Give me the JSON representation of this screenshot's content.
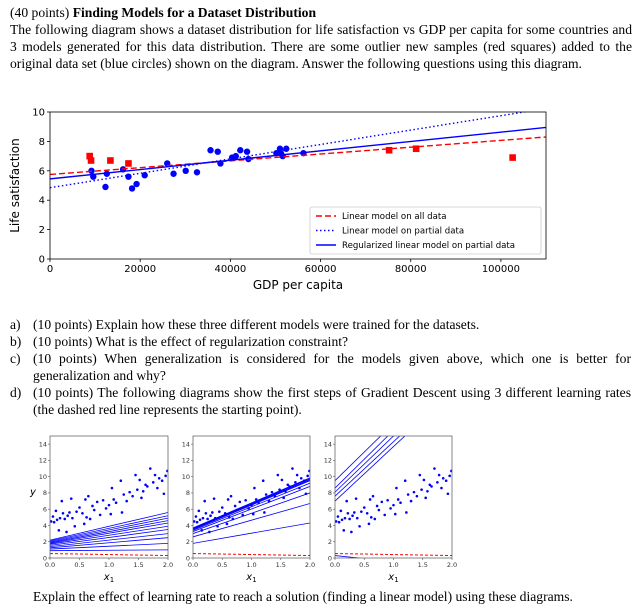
{
  "header": {
    "points": "(40 points)",
    "title": "Finding Models for a Dataset Distribution"
  },
  "intro": "The following diagram shows a dataset distribution for life satisfaction vs GDP per capita for some countries and 3 models generated for this data distribution. There are some outlier new samples (red squares) added to the original data set (blue circles) shown on the diagram. Answer the following questions using this diagram.",
  "questions": [
    {
      "letter": "a)",
      "text": "(10 points) Explain how these three different models were trained for the datasets."
    },
    {
      "letter": "b)",
      "text": "(10 points) What is the effect of regularization constraint?"
    },
    {
      "letter": "c)",
      "text": "(10 points) When generalization is considered for the models given above, which one is better for generalization and why?"
    },
    {
      "letter": "d)",
      "text": "(10 points) The following diagrams show the first steps of Gradient Descent using 3 different learning rates (the dashed red line represents the starting point)."
    }
  ],
  "closing": "Explain the effect of learning rate to reach a solution (finding a linear model) using these diagrams.",
  "chart_data": [
    {
      "type": "scatter",
      "xlabel": "GDP per capita",
      "ylabel": "Life satisfaction",
      "xlim": [
        0,
        110000
      ],
      "ylim": [
        0,
        10
      ],
      "xticks": [
        "0",
        "20000",
        "40000",
        "60000",
        "80000",
        "100000"
      ],
      "xtick_values": [
        0,
        20000,
        40000,
        60000,
        80000,
        100000
      ],
      "yticks": [
        "0",
        "2",
        "4",
        "6",
        "8",
        "10"
      ],
      "ytick_values": [
        0,
        2,
        4,
        6,
        8,
        10
      ],
      "legend_position": "bottom-right",
      "grid": false,
      "points": {
        "blue_circles": [
          [
            9200,
            6.0
          ],
          [
            9600,
            5.6
          ],
          [
            12600,
            5.8
          ],
          [
            12300,
            4.9
          ],
          [
            16200,
            6.1
          ],
          [
            17400,
            5.6
          ],
          [
            18200,
            4.8
          ],
          [
            19200,
            5.1
          ],
          [
            21000,
            5.7
          ],
          [
            26000,
            6.5
          ],
          [
            27400,
            5.8
          ],
          [
            30100,
            6.0
          ],
          [
            32600,
            5.9
          ],
          [
            35600,
            7.4
          ],
          [
            37200,
            7.3
          ],
          [
            37800,
            6.5
          ],
          [
            40400,
            6.9
          ],
          [
            41200,
            7.0
          ],
          [
            42200,
            7.4
          ],
          [
            43700,
            7.3
          ],
          [
            44000,
            6.8
          ],
          [
            50200,
            7.2
          ],
          [
            51000,
            7.5
          ],
          [
            51200,
            7.2
          ],
          [
            51600,
            7.0
          ],
          [
            52400,
            7.5
          ],
          [
            56200,
            7.2
          ]
        ],
        "red_squares": [
          [
            8800,
            7.0
          ],
          [
            9100,
            6.7
          ],
          [
            13400,
            6.7
          ],
          [
            17400,
            6.5
          ],
          [
            75200,
            7.4
          ],
          [
            81200,
            7.5
          ],
          [
            102600,
            6.9
          ]
        ]
      },
      "colors": {
        "blue": "#0000ff",
        "red": "#ff0000"
      },
      "series": [
        {
          "name": "Linear model on all data",
          "style": "dashed",
          "color": "#ff0000",
          "intercept": 5.75,
          "slope": 2.32e-05
        },
        {
          "name": "Linear model on partial data",
          "style": "dotted",
          "color": "#0000ff",
          "intercept": 4.85,
          "slope": 4.9e-05
        },
        {
          "name": "Regularized linear model on partial data",
          "style": "solid",
          "color": "#0000ff",
          "intercept": 5.45,
          "slope": 3.18e-05
        }
      ]
    },
    {
      "type": "line",
      "panels": 3,
      "xlabel": "x1",
      "ylabel": "y",
      "xlim": [
        0,
        2
      ],
      "ylim": [
        0,
        15
      ],
      "xticks": [
        "0.0",
        "0.5",
        "1.0",
        "1.5",
        "2.0"
      ],
      "xtick_values": [
        0,
        0.5,
        1,
        1.5,
        2
      ],
      "yticks": [
        "0",
        "2",
        "4",
        "6",
        "8",
        "10",
        "12",
        "14"
      ],
      "ytick_values": [
        0,
        2,
        4,
        6,
        8,
        10,
        12,
        14
      ],
      "start_line": {
        "intercept": 0.55,
        "slope": -0.125,
        "color": "#ff0000",
        "style": "dashed"
      },
      "points": [
        [
          0.02,
          4.5
        ],
        [
          0.05,
          5.1
        ],
        [
          0.07,
          4.4
        ],
        [
          0.1,
          5.8
        ],
        [
          0.12,
          4.7
        ],
        [
          0.15,
          3.4
        ],
        [
          0.17,
          4.9
        ],
        [
          0.2,
          7.0
        ],
        [
          0.22,
          5.5
        ],
        [
          0.25,
          4.8
        ],
        [
          0.28,
          3.2
        ],
        [
          0.3,
          5.2
        ],
        [
          0.33,
          5.6
        ],
        [
          0.36,
          7.3
        ],
        [
          0.38,
          4.9
        ],
        [
          0.42,
          3.9
        ],
        [
          0.45,
          5.7
        ],
        [
          0.5,
          6.2
        ],
        [
          0.55,
          5.5
        ],
        [
          0.58,
          4.2
        ],
        [
          0.6,
          7.2
        ],
        [
          0.62,
          5.0
        ],
        [
          0.65,
          7.6
        ],
        [
          0.68,
          4.8
        ],
        [
          0.72,
          6.4
        ],
        [
          0.75,
          5.9
        ],
        [
          0.8,
          6.9
        ],
        [
          0.85,
          5.3
        ],
        [
          0.9,
          7.1
        ],
        [
          0.95,
          6.1
        ],
        [
          1.0,
          6.5
        ],
        [
          1.03,
          5.4
        ],
        [
          1.05,
          8.6
        ],
        [
          1.08,
          7.2
        ],
        [
          1.12,
          6.8
        ],
        [
          1.2,
          9.5
        ],
        [
          1.22,
          5.6
        ],
        [
          1.25,
          7.8
        ],
        [
          1.3,
          7.0
        ],
        [
          1.35,
          8.1
        ],
        [
          1.4,
          7.6
        ],
        [
          1.45,
          10.2
        ],
        [
          1.48,
          8.4
        ],
        [
          1.52,
          9.6
        ],
        [
          1.55,
          7.4
        ],
        [
          1.58,
          8.2
        ],
        [
          1.62,
          9.0
        ],
        [
          1.65,
          8.8
        ],
        [
          1.7,
          11.0
        ],
        [
          1.75,
          9.3
        ],
        [
          1.78,
          10.2
        ],
        [
          1.82,
          8.6
        ],
        [
          1.85,
          9.8
        ],
        [
          1.9,
          9.5
        ],
        [
          1.93,
          7.9
        ],
        [
          1.96,
          10.1
        ],
        [
          1.99,
          10.7
        ]
      ],
      "learning_rate_panels": [
        {
          "lines": [
            [
              0.9,
              0.05
            ],
            [
              1.1,
              0.35
            ],
            [
              1.25,
              0.625
            ],
            [
              1.4,
              0.8
            ],
            [
              1.55,
              0.975
            ],
            [
              1.7,
              1.1
            ],
            [
              1.8,
              1.25
            ],
            [
              1.9,
              1.35
            ],
            [
              2.0,
              1.45
            ],
            [
              2.1,
              1.55
            ],
            [
              2.2,
              1.7
            ]
          ]
        },
        {
          "lines": [
            [
              1.8,
              1.25
            ],
            [
              2.6,
              2.05
            ],
            [
              3.0,
              2.5
            ],
            [
              3.25,
              2.775
            ],
            [
              3.4,
              2.9
            ],
            [
              3.5,
              3.0
            ],
            [
              3.55,
              3.025
            ],
            [
              3.6,
              3.05
            ],
            [
              3.65,
              3.075
            ],
            [
              3.7,
              3.075
            ]
          ]
        },
        {
          "lines": [
            [
              0.3,
              -0.75
            ],
            [
              7.0,
              6.7
            ],
            [
              7.6,
              6.7
            ],
            [
              8.1,
              6.9
            ],
            [
              8.6,
              7.1
            ],
            [
              9.5,
              7.05
            ]
          ]
        }
      ]
    }
  ]
}
